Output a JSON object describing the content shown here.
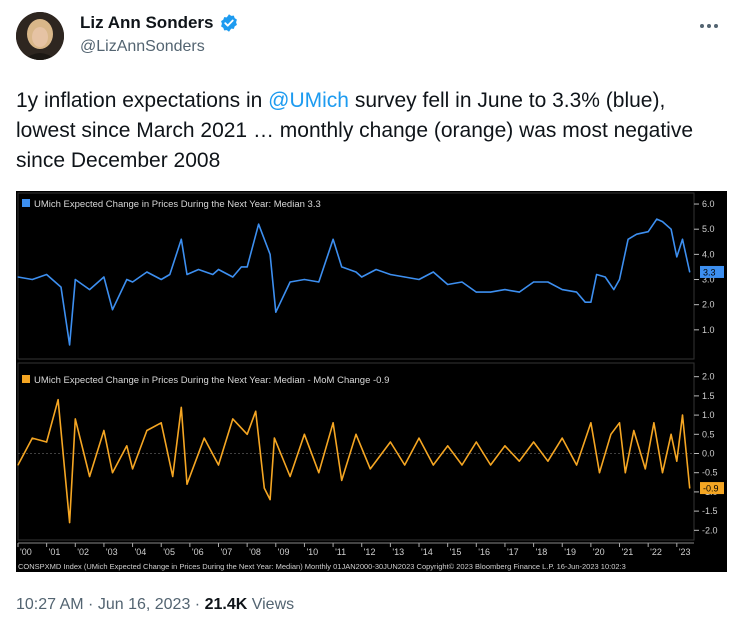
{
  "author": {
    "name": "Liz Ann Sonders",
    "handle": "@LizAnnSonders",
    "verified_icon": "verified-badge-icon",
    "verified_color": "#1d9bf0"
  },
  "tweet": {
    "text_part1": "1y inflation expectations in ",
    "mention": "@UMich",
    "text_part2": " survey fell in June to 3.3% (blue), lowest since March 2021 … monthly change (orange) was most negative since December 2008"
  },
  "footer": {
    "time": "10:27 AM",
    "sep": " · ",
    "date": "Jun 16, 2023",
    "sep2": " · ",
    "views_count": "21.4K",
    "views_label": " Views"
  },
  "chart_data": [
    {
      "type": "line",
      "title": "UMich Expected Change in Prices During the Next Year: Median 3.3",
      "color": "#3d8ff0",
      "ylim": [
        0,
        6.2
      ],
      "yticks": [
        "6.0",
        "5.0",
        "4.0",
        "3.0",
        "2.0",
        "1.0"
      ],
      "last_value_label": "3.3",
      "x": [
        2000,
        2000.5,
        2001,
        2001.5,
        2001.8,
        2002,
        2002.5,
        2003,
        2003.3,
        2003.8,
        2004,
        2004.5,
        2005,
        2005.3,
        2005.7,
        2005.9,
        2006.3,
        2006.8,
        2007,
        2007.5,
        2007.8,
        2008,
        2008.4,
        2008.8,
        2009,
        2009.5,
        2010,
        2010.5,
        2011,
        2011.3,
        2011.8,
        2012,
        2012.5,
        2013,
        2013.5,
        2014,
        2014.5,
        2015,
        2015.5,
        2016,
        2016.5,
        2017,
        2017.5,
        2018,
        2018.5,
        2019,
        2019.5,
        2019.8,
        2020,
        2020.2,
        2020.5,
        2020.8,
        2021,
        2021.3,
        2021.6,
        2022,
        2022.3,
        2022.5,
        2022.8,
        2023,
        2023.2,
        2023.45
      ],
      "values": [
        3.1,
        3.0,
        3.2,
        2.7,
        0.4,
        3.0,
        2.6,
        3.1,
        1.8,
        3.0,
        2.9,
        3.3,
        3.0,
        3.2,
        4.6,
        3.2,
        3.4,
        3.2,
        3.4,
        3.1,
        3.5,
        3.5,
        5.2,
        4.0,
        1.7,
        2.9,
        3.0,
        2.9,
        4.6,
        3.5,
        3.3,
        3.1,
        3.4,
        3.2,
        3.1,
        3.0,
        3.3,
        2.8,
        2.9,
        2.5,
        2.5,
        2.6,
        2.5,
        2.9,
        2.9,
        2.6,
        2.5,
        2.1,
        2.1,
        3.2,
        3.1,
        2.6,
        3.0,
        4.6,
        4.8,
        4.9,
        5.4,
        5.3,
        5.0,
        3.9,
        4.6,
        3.3
      ]
    },
    {
      "type": "line",
      "title": "UMich Expected Change in Prices During the Next Year: Median - MoM Change -0.9",
      "color": "#f5a623",
      "ylim": [
        -2.2,
        2.2
      ],
      "yticks": [
        "2.0",
        "1.5",
        "1.0",
        "0.5",
        "0.0",
        "-0.5",
        "-1.0",
        "-1.5",
        "-2.0"
      ],
      "last_value_label": "-0.9",
      "x": [
        2000,
        2000.5,
        2001,
        2001.4,
        2001.8,
        2002,
        2002.5,
        2003,
        2003.3,
        2003.8,
        2004,
        2004.5,
        2005,
        2005.4,
        2005.7,
        2005.9,
        2006.5,
        2007,
        2007.5,
        2008,
        2008.3,
        2008.6,
        2008.8,
        2008.95,
        2009.5,
        2010,
        2010.5,
        2011,
        2011.3,
        2011.8,
        2012.3,
        2013,
        2013.5,
        2014,
        2014.5,
        2015,
        2015.5,
        2016,
        2016.5,
        2017,
        2017.5,
        2018,
        2018.5,
        2019,
        2019.5,
        2020,
        2020.3,
        2020.7,
        2021,
        2021.2,
        2021.5,
        2021.9,
        2022.2,
        2022.5,
        2022.8,
        2023,
        2023.2,
        2023.45
      ],
      "values": [
        -0.3,
        0.4,
        0.3,
        1.4,
        -1.8,
        0.9,
        -0.6,
        0.6,
        -0.5,
        0.2,
        -0.4,
        0.6,
        0.8,
        -0.6,
        1.2,
        -0.8,
        0.4,
        -0.3,
        0.9,
        0.5,
        1.1,
        -0.9,
        -1.2,
        0.4,
        -0.6,
        0.5,
        -0.5,
        0.8,
        -0.7,
        0.5,
        -0.4,
        0.3,
        -0.3,
        0.4,
        -0.3,
        0.2,
        -0.3,
        0.3,
        -0.3,
        0.2,
        -0.2,
        0.3,
        -0.2,
        0.4,
        -0.3,
        0.8,
        -0.5,
        0.5,
        0.8,
        -0.5,
        0.6,
        -0.4,
        0.8,
        -0.5,
        0.5,
        -0.2,
        1.0,
        -0.9
      ]
    }
  ],
  "xaxis_ticks": [
    "'00",
    "'01",
    "'02",
    "'03",
    "'04",
    "'05",
    "'06",
    "'07",
    "'08",
    "'09",
    "'10",
    "'11",
    "'12",
    "'13",
    "'14",
    "'15",
    "'16",
    "'17",
    "'18",
    "'19",
    "'20",
    "'21",
    "'22",
    "'23"
  ],
  "source_line": "CONSPXMD Index (UMich Expected Change in Prices During the Next Year: Median)  Monthly 01JAN2000-30JUN2023 Copyright© 2023 Bloomberg Finance L.P.  16-Jun-2023 10:02:3"
}
